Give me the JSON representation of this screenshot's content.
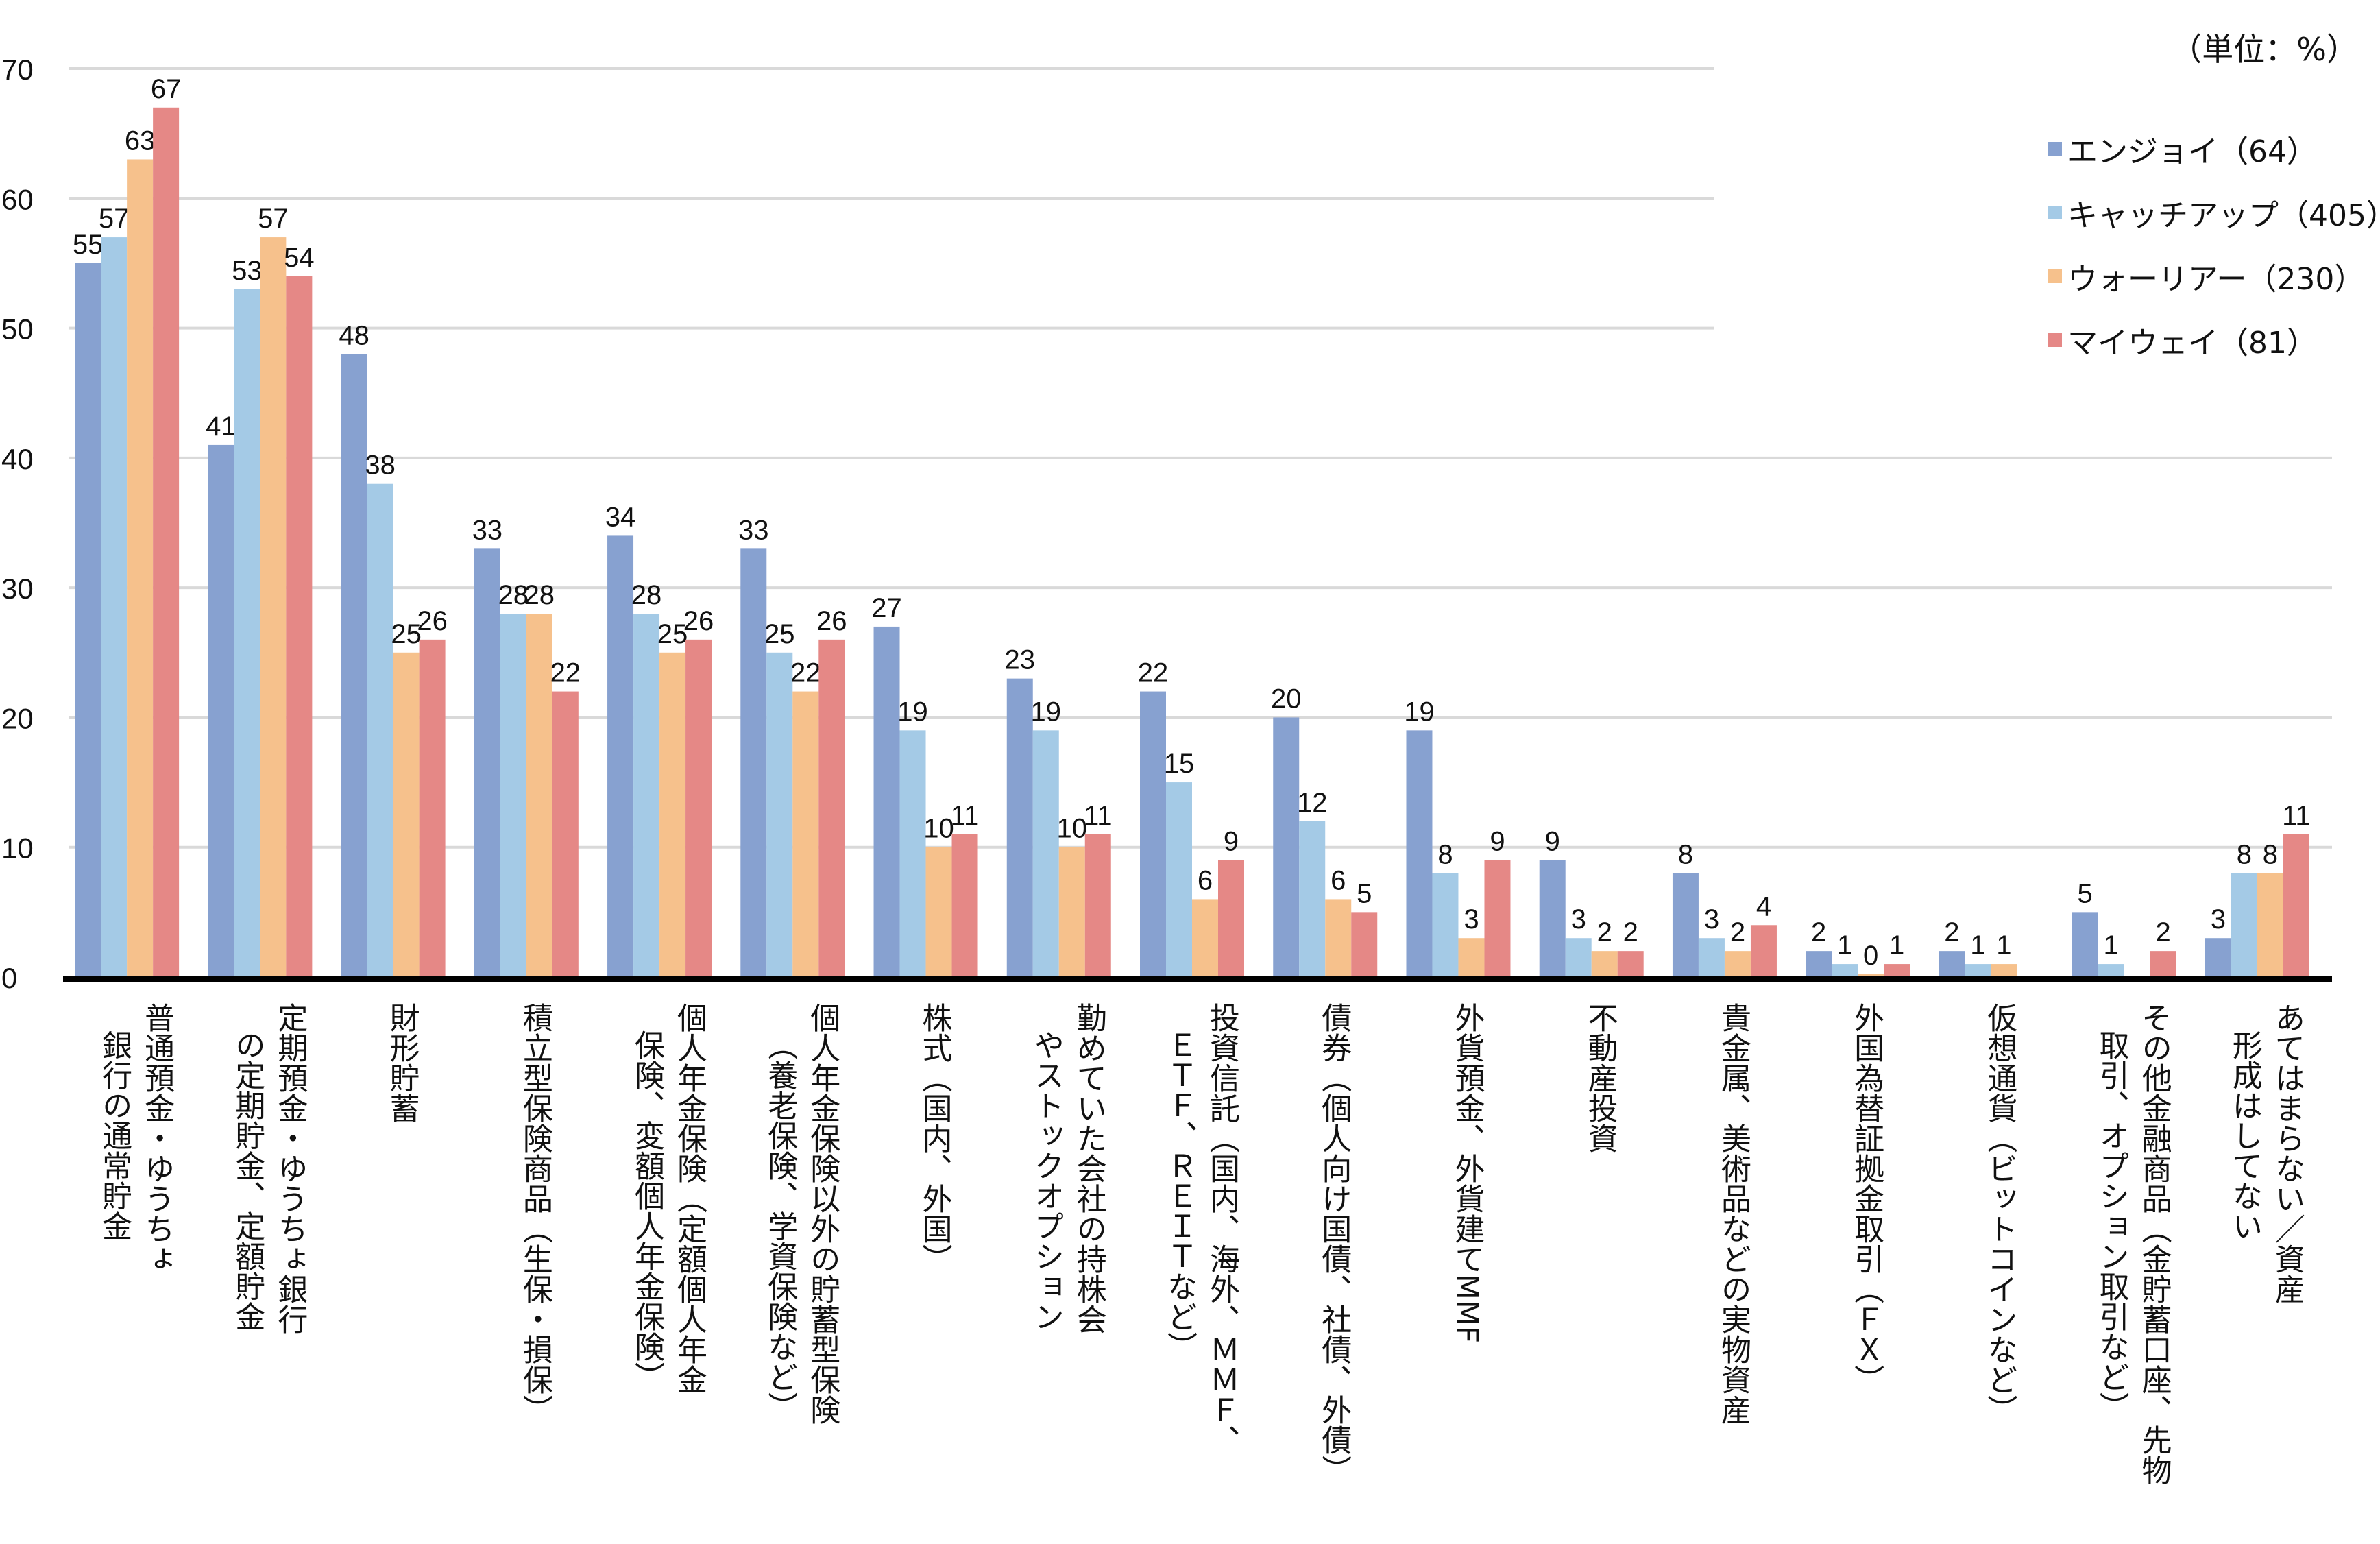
{
  "chart_data": {
    "type": "bar",
    "unit_note": "（単位：%）",
    "ylim": [
      0,
      70
    ],
    "yticks": [
      0,
      10,
      20,
      30,
      40,
      50,
      60,
      70
    ],
    "grid": true,
    "legend_position": "top-right",
    "categories": [
      [
        "普通預金・ゆうちょ",
        "銀行の通常貯金"
      ],
      [
        "定期預金・ゆうちょ銀行",
        "の定期貯金、定額貯金"
      ],
      [
        "財形貯蓄"
      ],
      [
        "積立型保険商品（生保・損保）"
      ],
      [
        "個人年金保険（定額個人年金",
        "保険、変額個人年金保険）"
      ],
      [
        "個人年金保険以外の貯蓄型保険",
        "（養老保険、学資保険など）"
      ],
      [
        "株式（国内、外国）"
      ],
      [
        "勤めていた会社の持株会",
        "やストックオプション"
      ],
      [
        "投資信託（国内、海外、ＭＭＦ、",
        "ＥＴＦ、ＲＥＩＴなど）"
      ],
      [
        "債券（個人向け国債、社債、外債）"
      ],
      [
        "外貨預金、外貨建てMMF"
      ],
      [
        "不動産投資"
      ],
      [
        "貴金属、美術品などの実物資産"
      ],
      [
        "外国為替証拠金取引（ＦＸ）"
      ],
      [
        "仮想通貨（ビットコインなど）"
      ],
      [
        "その他金融商品（金貯蓄口座、先物",
        "取引、オプション取引など）"
      ],
      [
        "あてはまらない／資産",
        "形成はしてない"
      ]
    ],
    "series": [
      {
        "name": "エンジョイ（64）",
        "color": "#87a1d0",
        "values": [
          55,
          41,
          48,
          33,
          34,
          33,
          27,
          23,
          22,
          20,
          19,
          9,
          8,
          2,
          2,
          5,
          3
        ]
      },
      {
        "name": "キャッチアップ（405）",
        "color": "#a4cae6",
        "values": [
          57,
          53,
          38,
          28,
          28,
          25,
          19,
          19,
          15,
          12,
          8,
          3,
          3,
          1,
          1,
          1,
          8
        ]
      },
      {
        "name": "ウォーリアー（230）",
        "color": "#f6c18c",
        "values": [
          63,
          57,
          25,
          28,
          25,
          22,
          10,
          10,
          6,
          6,
          3,
          2,
          2,
          0,
          1,
          null,
          8
        ]
      },
      {
        "name": "マイウェイ（81）",
        "color": "#e58886",
        "values": [
          67,
          54,
          26,
          22,
          26,
          26,
          11,
          11,
          9,
          5,
          9,
          2,
          4,
          1,
          null,
          2,
          11
        ]
      }
    ]
  }
}
